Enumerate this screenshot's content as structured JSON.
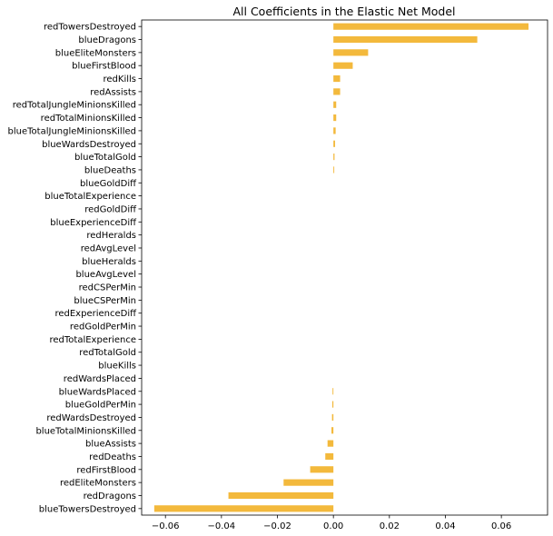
{
  "chart_data": {
    "type": "bar",
    "orientation": "horizontal",
    "title": "All Coefficients in the Elastic Net Model",
    "xlabel": "",
    "ylabel": "",
    "xlim": [
      -0.0685,
      0.0765
    ],
    "grid": false,
    "bar_color": "#f3b93c",
    "xticks": [
      {
        "value": -0.06,
        "label": "−0.06"
      },
      {
        "value": -0.04,
        "label": "−0.04"
      },
      {
        "value": -0.02,
        "label": "−0.02"
      },
      {
        "value": 0.0,
        "label": "0.00"
      },
      {
        "value": 0.02,
        "label": "0.02"
      },
      {
        "value": 0.04,
        "label": "0.04"
      },
      {
        "value": 0.06,
        "label": "0.06"
      }
    ],
    "categories": [
      "redTowersDestroyed",
      "blueDragons",
      "blueEliteMonsters",
      "blueFirstBlood",
      "redKills",
      "redAssists",
      "redTotalJungleMinionsKilled",
      "redTotalMinionsKilled",
      "blueTotalJungleMinionsKilled",
      "blueWardsDestroyed",
      "blueTotalGold",
      "blueDeaths",
      "blueGoldDiff",
      "blueTotalExperience",
      "redGoldDiff",
      "blueExperienceDiff",
      "redHeralds",
      "redAvgLevel",
      "blueHeralds",
      "blueAvgLevel",
      "redCSPerMin",
      "blueCSPerMin",
      "redExperienceDiff",
      "redGoldPerMin",
      "redTotalExperience",
      "redTotalGold",
      "blueKills",
      "redWardsPlaced",
      "blueWardsPlaced",
      "blueGoldPerMin",
      "redWardsDestroyed",
      "blueTotalMinionsKilled",
      "blueAssists",
      "redDeaths",
      "redFirstBlood",
      "redEliteMonsters",
      "redDragons",
      "blueTowersDestroyed"
    ],
    "values": [
      0.0697,
      0.0514,
      0.0124,
      0.0069,
      0.0024,
      0.0024,
      0.001,
      0.001,
      0.0008,
      0.0006,
      0.0004,
      0.0003,
      0.0,
      0.0,
      0.0,
      0.0,
      0.0,
      0.0,
      0.0,
      0.0,
      0.0,
      0.0,
      0.0,
      0.0,
      0.0,
      0.0,
      0.0,
      0.0,
      -0.0003,
      -0.0004,
      -0.0005,
      -0.0007,
      -0.0021,
      -0.0029,
      -0.0083,
      -0.0178,
      -0.0375,
      -0.064
    ]
  }
}
